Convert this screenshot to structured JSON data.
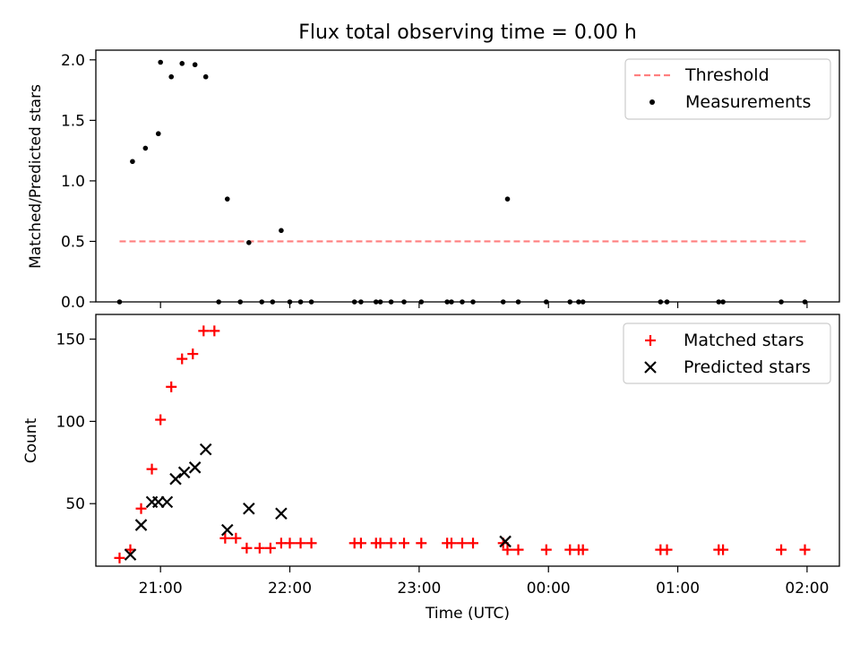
{
  "chart_data": [
    {
      "type": "scatter",
      "title": "Flux total observing time = 0.00 h",
      "ylabel": "Matched/Predicted stars",
      "xlabel": "",
      "ylim": [
        0,
        2.08
      ],
      "yticks": [
        0.0,
        0.5,
        1.0,
        1.5,
        2.0
      ],
      "ytick_labels": [
        "0.0",
        "0.5",
        "1.0",
        "1.5",
        "2.0"
      ],
      "xlim": [
        "20:30",
        "02:15"
      ],
      "grid": false,
      "legend_position": "top-right",
      "threshold": {
        "name": "Threshold",
        "value": 0.5,
        "x_range": [
          "20:41",
          "02:00"
        ],
        "color": "#ff7f7f",
        "style": "dashed"
      },
      "series": [
        {
          "name": "Measurements",
          "marker": "dot",
          "color": "#000000",
          "points": [
            [
              "20:41",
              0.0
            ],
            [
              "20:47",
              1.16
            ],
            [
              "20:53",
              1.27
            ],
            [
              "20:59",
              1.39
            ],
            [
              "21:00",
              1.98
            ],
            [
              "21:05",
              1.86
            ],
            [
              "21:10",
              1.97
            ],
            [
              "21:16",
              1.96
            ],
            [
              "21:21",
              1.86
            ],
            [
              "21:27",
              0.0
            ],
            [
              "21:31",
              0.85
            ],
            [
              "21:37",
              0.0
            ],
            [
              "21:41",
              0.49
            ],
            [
              "21:47",
              0.0
            ],
            [
              "21:52",
              0.0
            ],
            [
              "21:56",
              0.59
            ],
            [
              "22:00",
              0.0
            ],
            [
              "22:05",
              0.0
            ],
            [
              "22:10",
              0.0
            ],
            [
              "22:30",
              0.0
            ],
            [
              "22:33",
              0.0
            ],
            [
              "22:40",
              0.0
            ],
            [
              "22:42",
              0.0
            ],
            [
              "22:47",
              0.0
            ],
            [
              "22:53",
              0.0
            ],
            [
              "23:01",
              0.0
            ],
            [
              "23:13",
              0.0
            ],
            [
              "23:15",
              0.0
            ],
            [
              "23:20",
              0.0
            ],
            [
              "23:25",
              0.0
            ],
            [
              "23:39",
              0.0
            ],
            [
              "23:41",
              0.85
            ],
            [
              "23:46",
              0.0
            ],
            [
              "23:59",
              0.0
            ],
            [
              "00:10",
              0.0
            ],
            [
              "00:14",
              0.0
            ],
            [
              "00:16",
              0.0
            ],
            [
              "00:52",
              0.0
            ],
            [
              "00:55",
              0.0
            ],
            [
              "01:19",
              0.0
            ],
            [
              "01:21",
              0.0
            ],
            [
              "01:48",
              0.0
            ],
            [
              "01:59",
              0.0
            ]
          ]
        }
      ]
    },
    {
      "type": "scatter",
      "title": "",
      "ylabel": "Count",
      "xlabel": "Time (UTC)",
      "ylim": [
        12,
        165
      ],
      "yticks": [
        50,
        100,
        150
      ],
      "ytick_labels": [
        "50",
        "100",
        "150"
      ],
      "xlim": [
        "20:30",
        "02:15"
      ],
      "xticks": [
        "21:00",
        "22:00",
        "23:00",
        "00:00",
        "01:00",
        "02:00"
      ],
      "xtick_labels": [
        "21:00",
        "22:00",
        "23:00",
        "00:00",
        "01:00",
        "02:00"
      ],
      "grid": false,
      "legend_position": "top-right",
      "series": [
        {
          "name": "Matched stars",
          "marker": "plus",
          "color": "#ff0000",
          "points": [
            [
              "20:41",
              17
            ],
            [
              "20:46",
              22
            ],
            [
              "20:51",
              47
            ],
            [
              "20:56",
              71
            ],
            [
              "21:00",
              101
            ],
            [
              "21:05",
              121
            ],
            [
              "21:10",
              138
            ],
            [
              "21:15",
              141
            ],
            [
              "21:20",
              155
            ],
            [
              "21:25",
              155
            ],
            [
              "21:30",
              29
            ],
            [
              "21:35",
              29
            ],
            [
              "21:40",
              23
            ],
            [
              "21:46",
              23
            ],
            [
              "21:51",
              23
            ],
            [
              "21:56",
              26
            ],
            [
              "22:00",
              26
            ],
            [
              "22:05",
              26
            ],
            [
              "22:10",
              26
            ],
            [
              "22:30",
              26
            ],
            [
              "22:33",
              26
            ],
            [
              "22:40",
              26
            ],
            [
              "22:42",
              26
            ],
            [
              "22:47",
              26
            ],
            [
              "22:53",
              26
            ],
            [
              "23:01",
              26
            ],
            [
              "23:13",
              26
            ],
            [
              "23:15",
              26
            ],
            [
              "23:20",
              26
            ],
            [
              "23:25",
              26
            ],
            [
              "23:39",
              26
            ],
            [
              "23:41",
              22
            ],
            [
              "23:46",
              22
            ],
            [
              "23:59",
              22
            ],
            [
              "00:10",
              22
            ],
            [
              "00:14",
              22
            ],
            [
              "00:16",
              22
            ],
            [
              "00:52",
              22
            ],
            [
              "00:55",
              22
            ],
            [
              "01:19",
              22
            ],
            [
              "01:21",
              22
            ],
            [
              "01:48",
              22
            ],
            [
              "01:59",
              22
            ]
          ]
        },
        {
          "name": "Predicted stars",
          "marker": "x",
          "color": "#000000",
          "points": [
            [
              "20:46",
              19
            ],
            [
              "20:51",
              37
            ],
            [
              "20:56",
              51
            ],
            [
              "20:59",
              51
            ],
            [
              "21:03",
              51
            ],
            [
              "21:07",
              65
            ],
            [
              "21:11",
              69
            ],
            [
              "21:16",
              72
            ],
            [
              "21:21",
              83
            ],
            [
              "21:31",
              34
            ],
            [
              "21:41",
              47
            ],
            [
              "21:56",
              44
            ],
            [
              "23:40",
              27
            ]
          ]
        }
      ]
    }
  ]
}
